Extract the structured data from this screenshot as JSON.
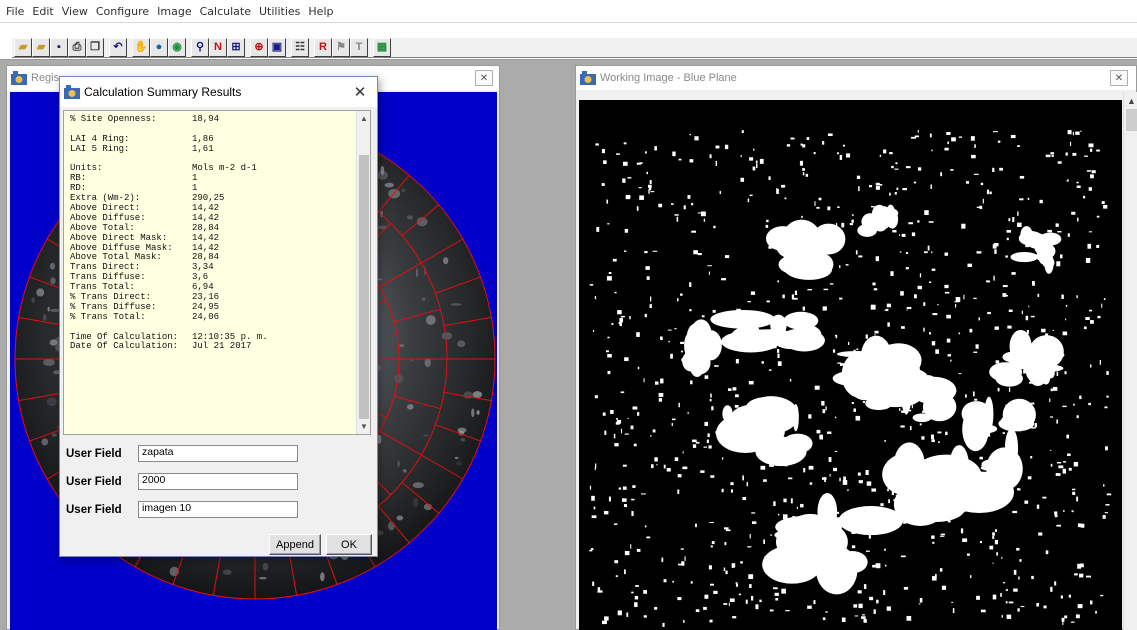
{
  "menu": [
    "File",
    "Edit",
    "View",
    "Configure",
    "Image",
    "Calculate",
    "Utilities",
    "Help"
  ],
  "toolbar": {
    "buttons": [
      {
        "name": "open-folder",
        "glyph": "▰",
        "color": "#c89a2a"
      },
      {
        "name": "open-image",
        "glyph": "▰",
        "color": "#c89a2a"
      },
      {
        "name": "save",
        "glyph": "▪",
        "color": "#1a1a80"
      },
      {
        "name": "print",
        "glyph": "⎙",
        "color": "#333333"
      },
      {
        "name": "copy",
        "glyph": "❐",
        "color": "#333333"
      },
      {
        "name": "undo",
        "glyph": "↶",
        "color": "#1a1a80"
      },
      {
        "name": "hand",
        "glyph": "✋",
        "color": "#444444"
      },
      {
        "name": "circle",
        "glyph": "●",
        "color": "#0a6aa8"
      },
      {
        "name": "target",
        "glyph": "◉",
        "color": "#1f8f3a"
      },
      {
        "name": "zoom",
        "glyph": "⚲",
        "color": "#1a1a80"
      },
      {
        "name": "threshold",
        "glyph": "N",
        "color": "#c01010"
      },
      {
        "name": "grid",
        "glyph": "⊞",
        "color": "#1a1a80"
      },
      {
        "name": "overlay",
        "glyph": "⊕",
        "color": "#c01010"
      },
      {
        "name": "frame",
        "glyph": "▣",
        "color": "#1a1a80"
      },
      {
        "name": "properties",
        "glyph": "☷",
        "color": "#333333"
      },
      {
        "name": "calc-r",
        "glyph": "R",
        "color": "#c01010"
      },
      {
        "name": "flag",
        "glyph": "⚑",
        "color": "#888888"
      },
      {
        "name": "text-t",
        "glyph": "T",
        "color": "#888888"
      },
      {
        "name": "calculator",
        "glyph": "▦",
        "color": "#1f8f3a"
      }
    ]
  },
  "left_window": {
    "title": "Regis"
  },
  "right_window": {
    "title": "Working Image  - Blue Plane"
  },
  "dialog": {
    "title": "Calculation Summary Results",
    "results": [
      {
        "k": "% Site Openness:",
        "v": "18,94"
      },
      {
        "k": "",
        "v": ""
      },
      {
        "k": "LAI 4 Ring:",
        "v": "1,86"
      },
      {
        "k": "LAI 5 Ring:",
        "v": "1,61"
      },
      {
        "k": "",
        "v": ""
      },
      {
        "k": "Units:",
        "v": "Mols m-2 d-1"
      },
      {
        "k": "RB:",
        "v": "1"
      },
      {
        "k": "RD:",
        "v": "1"
      },
      {
        "k": "Extra (Wm-2):",
        "v": "290,25"
      },
      {
        "k": "Above Direct:",
        "v": "14,42"
      },
      {
        "k": "Above Diffuse:",
        "v": "14,42"
      },
      {
        "k": "Above Total:",
        "v": "28,84"
      },
      {
        "k": "Above Direct Mask:",
        "v": "14,42"
      },
      {
        "k": "Above Diffuse Mask:",
        "v": "14,42"
      },
      {
        "k": "Above Total Mask:",
        "v": "28,84"
      },
      {
        "k": "Trans Direct:",
        "v": "3,34"
      },
      {
        "k": "Trans Diffuse:",
        "v": "3,6"
      },
      {
        "k": "Trans Total:",
        "v": "6,94"
      },
      {
        "k": "% Trans Direct:",
        "v": "23,16"
      },
      {
        "k": "% Trans Diffuse:",
        "v": "24,95"
      },
      {
        "k": "% Trans Total:",
        "v": "24,06"
      },
      {
        "k": "",
        "v": ""
      },
      {
        "k": "Time Of Calculation:",
        "v": "12:10:35 p. m."
      },
      {
        "k": "Date Of Calculation:",
        "v": "Jul 21 2017"
      }
    ],
    "user_fields": [
      {
        "label": "User Field",
        "value": "zapata"
      },
      {
        "label": "User Field",
        "value": "2000"
      },
      {
        "label": "User Field",
        "value": "imagen 10"
      }
    ],
    "append_label": "Append",
    "ok_label": "OK"
  }
}
